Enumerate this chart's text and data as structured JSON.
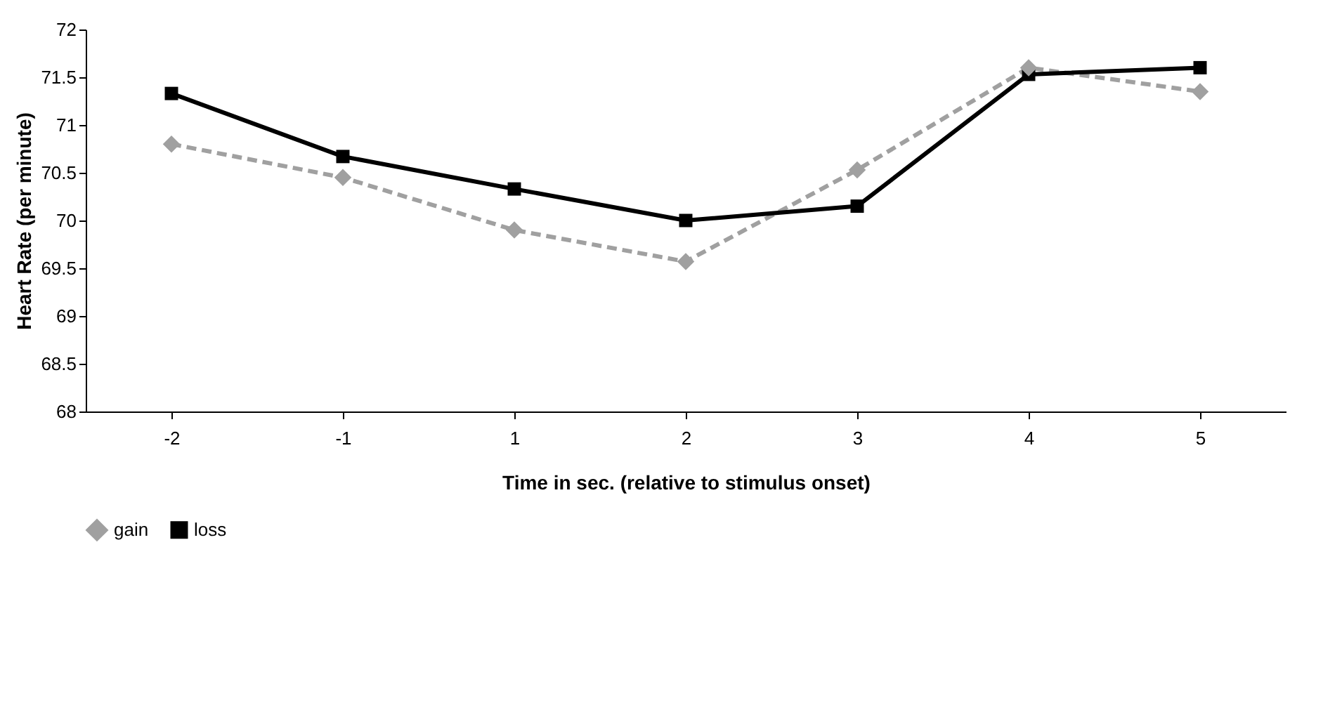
{
  "chart_data": {
    "type": "line",
    "xlabel": "Time in sec. (relative to stimulus onset)",
    "ylabel": "Heart Rate (per minute)",
    "categories": [
      "-2",
      "-1",
      "1",
      "2",
      "3",
      "4",
      "5"
    ],
    "ylim": [
      68,
      72
    ],
    "yticks": [
      68,
      68.5,
      69,
      69.5,
      70,
      70.5,
      71,
      71.5,
      72
    ],
    "grid": false,
    "legend": "bottom",
    "series": [
      {
        "name": "gain",
        "color": "#a0a0a0",
        "marker": "diamond",
        "line_style": "dashed",
        "values": [
          70.8,
          70.45,
          69.9,
          69.57,
          70.53,
          71.6,
          71.35
        ]
      },
      {
        "name": "loss",
        "color": "#000000",
        "marker": "square",
        "line_style": "solid",
        "values": [
          71.33,
          70.67,
          70.33,
          70.0,
          70.15,
          71.53,
          71.6
        ]
      }
    ]
  }
}
